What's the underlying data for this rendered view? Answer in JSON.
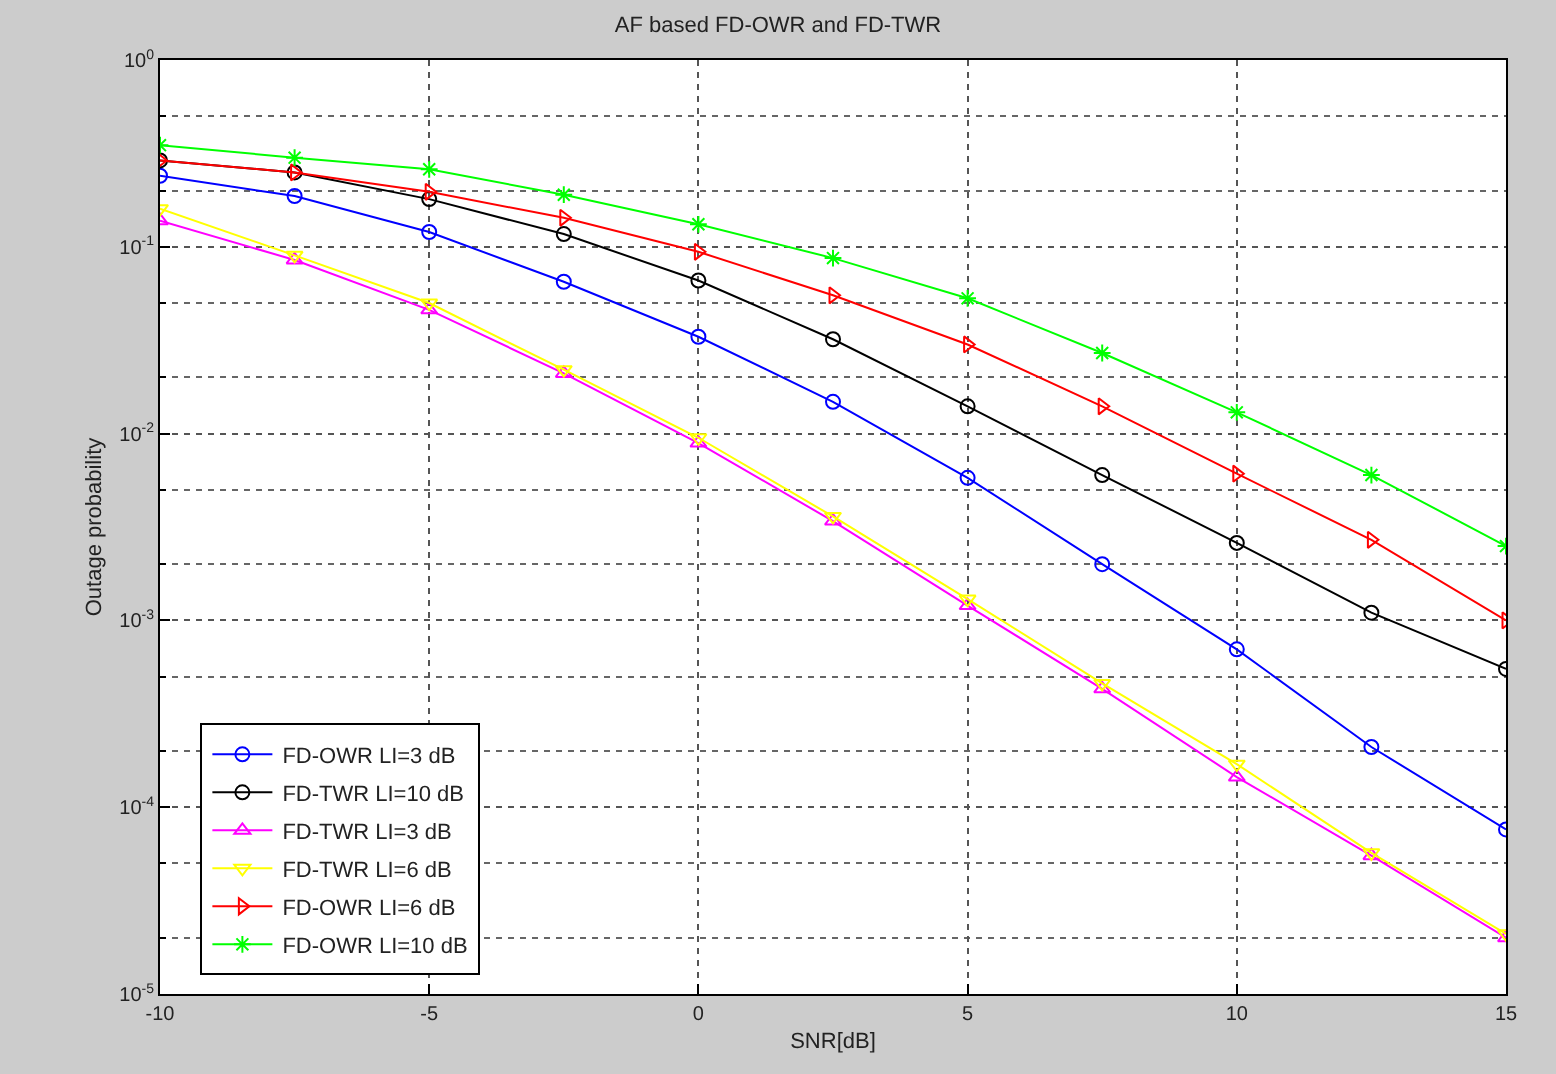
{
  "chart_data": {
    "type": "line",
    "title": "AF based FD-OWR and FD-TWR",
    "xlabel": "SNR[dB]",
    "ylabel": "Outage probability",
    "x": [
      -10,
      -7.5,
      -5,
      -2.5,
      0,
      2.5,
      5,
      7.5,
      10,
      12.5,
      15
    ],
    "series": [
      {
        "name": "FD-OWR LI=3 dB",
        "color": "#0000ff",
        "marker": "circle",
        "values": [
          0.24,
          0.187,
          0.12,
          0.065,
          0.033,
          0.0148,
          0.0058,
          0.002,
          0.0007,
          0.00021,
          7.6e-05
        ]
      },
      {
        "name": "FD-TWR LI=10 dB",
        "color": "#000000",
        "marker": "circle",
        "values": [
          0.29,
          0.25,
          0.18,
          0.117,
          0.066,
          0.032,
          0.014,
          0.006,
          0.0026,
          0.0011,
          0.00055
        ]
      },
      {
        "name": "FD-TWR LI=3 dB",
        "color": "#ff00ff",
        "marker": "triangle",
        "values": [
          0.138,
          0.085,
          0.046,
          0.021,
          0.0089,
          0.0034,
          0.0012,
          0.00043,
          0.000145,
          5.5e-05,
          2e-05
        ]
      },
      {
        "name": "FD-TWR LI=6 dB",
        "color": "#ffff00",
        "marker": "triangle-down",
        "values": [
          0.16,
          0.09,
          0.05,
          0.022,
          0.0095,
          0.0036,
          0.0013,
          0.00046,
          0.00017,
          5.7e-05,
          2.1e-05
        ]
      },
      {
        "name": "FD-OWR LI=6 dB",
        "color": "#ff0000",
        "marker": "triangle-right",
        "values": [
          0.29,
          0.25,
          0.197,
          0.143,
          0.094,
          0.055,
          0.03,
          0.014,
          0.0061,
          0.0027,
          0.001
        ]
      },
      {
        "name": "FD-OWR LI=10 dB",
        "color": "#00ff00",
        "marker": "cross",
        "values": [
          0.35,
          0.3,
          0.26,
          0.19,
          0.132,
          0.087,
          0.053,
          0.027,
          0.013,
          0.006,
          0.0025
        ]
      }
    ],
    "xlim": [
      -10,
      15
    ],
    "xticks": [
      -10,
      -5,
      0,
      5,
      10,
      15
    ],
    "ylim": [
      1e-05,
      1
    ],
    "log": "y",
    "yticks": [
      {
        "value": 1,
        "label": "10$^{0}$"
      },
      {
        "value": 0.1,
        "label": "10$^{-1}$"
      },
      {
        "value": 0.01,
        "label": "10$^{-2}$"
      },
      {
        "value": 0.001,
        "label": "10$^{-3}$"
      },
      {
        "value": 0.0001,
        "label": "10$^{-4}$"
      },
      {
        "value": 1e-05,
        "label": "10$^{-5}$"
      }
    ],
    "grid": true,
    "legend": "bottom left",
    "line_style": "solid"
  }
}
